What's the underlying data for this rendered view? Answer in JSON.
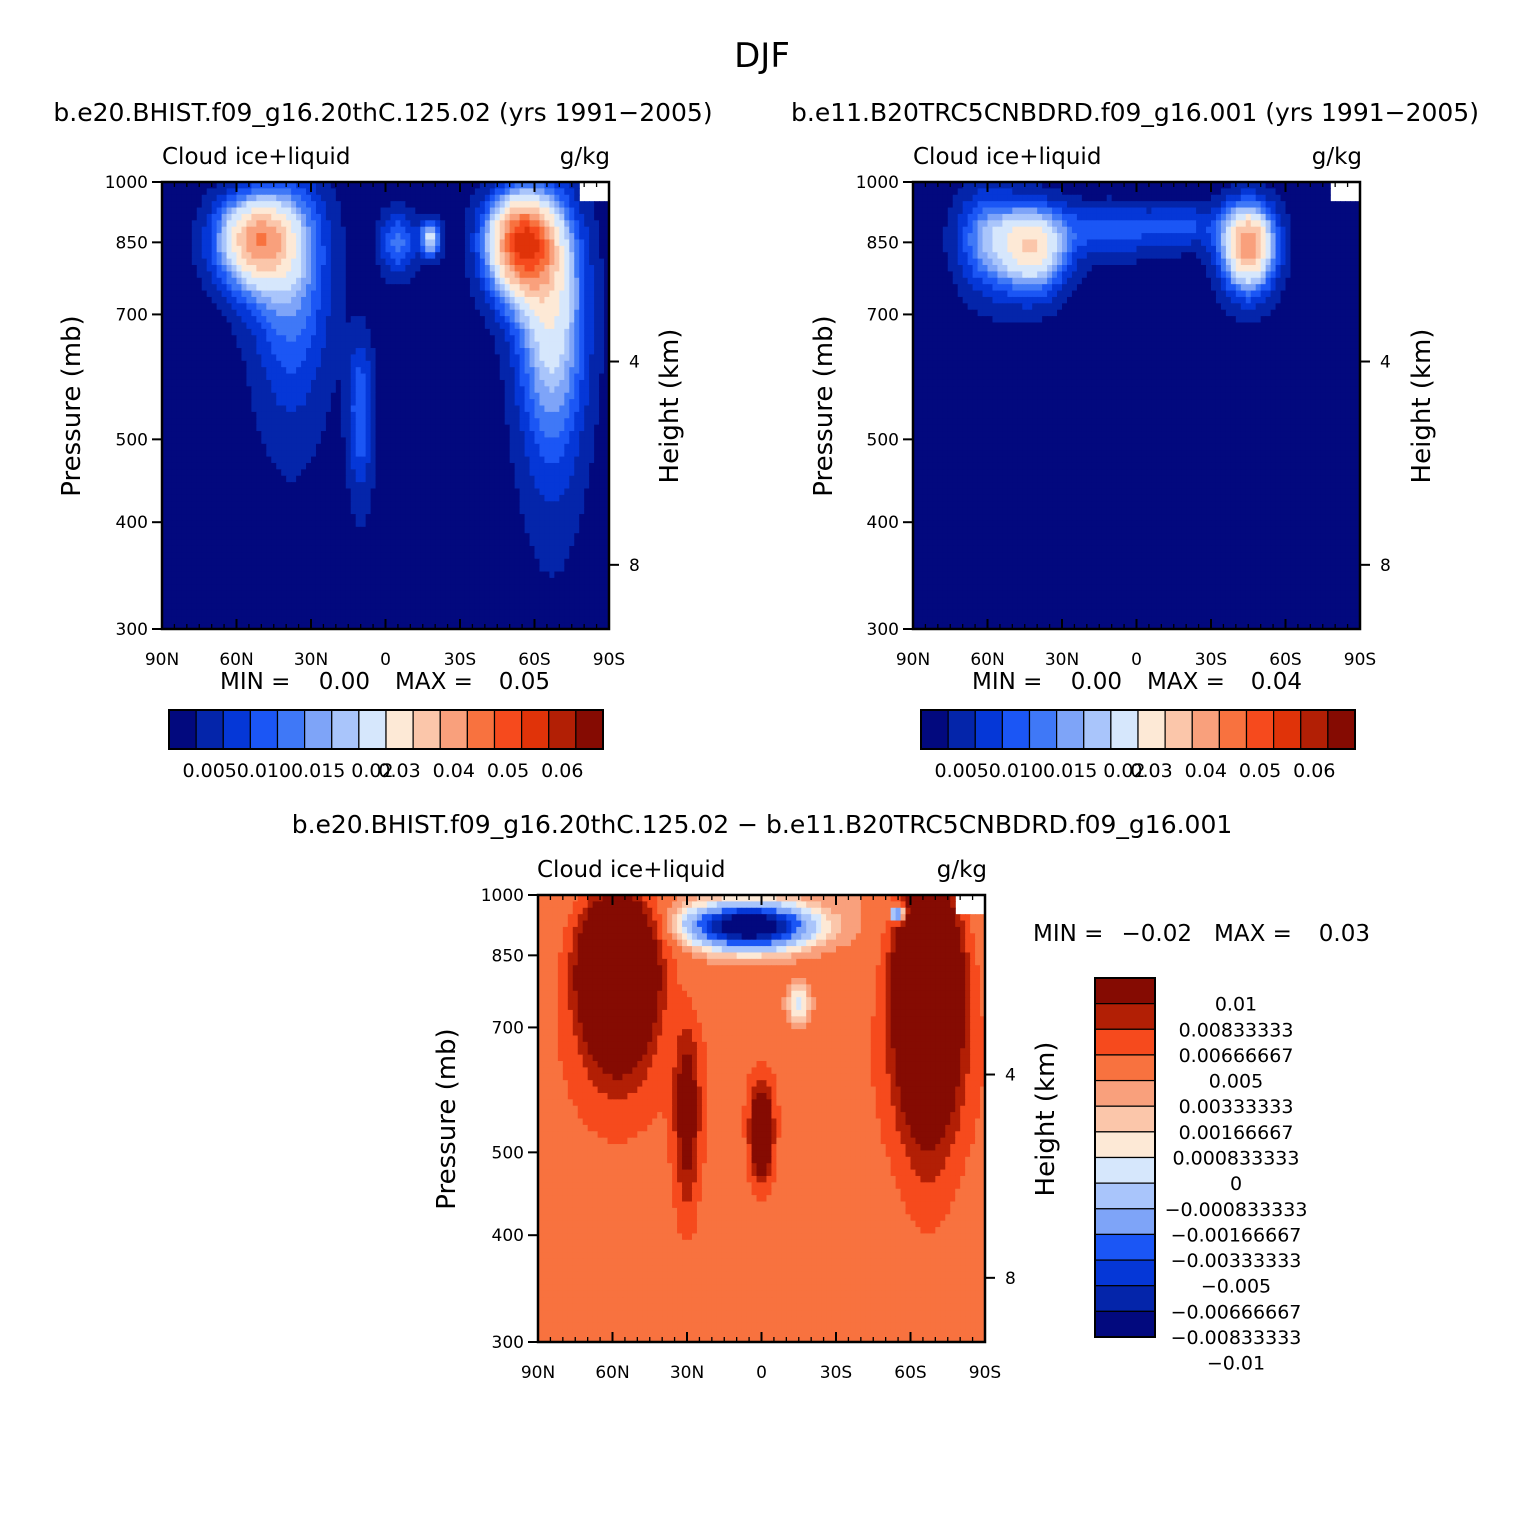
{
  "figure": {
    "title": "DJF"
  },
  "colors": {
    "seq": [
      "#02097e",
      "#0425aa",
      "#0537d7",
      "#1b56f5",
      "#3f78f7",
      "#7ea4f8",
      "#a9c5fb",
      "#d6e7fc",
      "#fde9d6",
      "#fbc6aa",
      "#f9a07c",
      "#f8723f",
      "#f64a1d",
      "#e03309",
      "#b21f05",
      "#850b02"
    ],
    "div": [
      "#02097e",
      "#0425aa",
      "#0537d7",
      "#1b56f5",
      "#7ea4f8",
      "#a9c5fb",
      "#d6e7fc",
      "#fde9d6",
      "#fbc6aa",
      "#f9a07c",
      "#f8723f",
      "#f64a1d",
      "#b21f05",
      "#850b02"
    ]
  },
  "chart_data": [
    {
      "type": "contour",
      "title": "b.e20.BHIST.f09_g16.20thC.125.02 (yrs 1991−2005)",
      "left_label": "Cloud ice+liquid",
      "right_label": "g/kg",
      "ylabel": "Pressure (mb)",
      "ylabel_right": "Height (km)",
      "x_ticks": [
        "90N",
        "60N",
        "30N",
        "0",
        "30S",
        "60S",
        "90S"
      ],
      "xlim": [
        90,
        -90
      ],
      "y_ticks": [
        "300",
        "400",
        "500",
        "700",
        "850",
        "1000"
      ],
      "ylim": [
        1000,
        300
      ],
      "y_right_ticks": [
        "8",
        "4"
      ],
      "min_label": "MIN =",
      "min_value": "0.00",
      "max_label": "MAX =",
      "max_value": "0.05",
      "colorbar_labels": [
        "0.005",
        "0.010",
        "0.015",
        "0.02",
        "0.03",
        "0.04",
        "0.05",
        "0.06"
      ],
      "blobs": [
        {
          "lat": 52,
          "p": 855,
          "sx": 15,
          "sy": 100,
          "amp": 0.032
        },
        {
          "lat": 38,
          "p": 780,
          "sx": 15,
          "sy": 230,
          "amp": 0.012
        },
        {
          "lat": 10,
          "p": 540,
          "sx": 5,
          "sy": 110,
          "amp": 0.009
        },
        {
          "lat": -18,
          "p": 860,
          "sx": 4,
          "sy": 40,
          "amp": 0.018
        },
        {
          "lat": -55,
          "p": 850,
          "sx": 13,
          "sy": 110,
          "amp": 0.045
        },
        {
          "lat": -67,
          "p": 700,
          "sx": 13,
          "sy": 220,
          "amp": 0.02
        },
        {
          "lat": -5,
          "p": 850,
          "sx": 7,
          "sy": 70,
          "amp": 0.01
        }
      ]
    },
    {
      "type": "contour",
      "title": "b.e11.B20TRC5CNBDRD.f09_g16.001 (yrs 1991−2005)",
      "left_label": "Cloud ice+liquid",
      "right_label": "g/kg",
      "ylabel": "Pressure (mb)",
      "ylabel_right": "Height (km)",
      "x_ticks": [
        "90N",
        "60N",
        "30N",
        "0",
        "30S",
        "60S",
        "90S"
      ],
      "xlim": [
        90,
        -90
      ],
      "y_ticks": [
        "300",
        "400",
        "500",
        "700",
        "850",
        "1000"
      ],
      "ylim": [
        1000,
        300
      ],
      "y_right_ticks": [
        "8",
        "4"
      ],
      "min_label": "MIN =",
      "min_value": "0.00",
      "max_label": "MAX =",
      "max_value": "0.04",
      "colorbar_labels": [
        "0.005",
        "0.010",
        "0.015",
        "0.02",
        "0.03",
        "0.04",
        "0.05",
        "0.06"
      ],
      "blobs": [
        {
          "lat": 42,
          "p": 840,
          "sx": 13,
          "sy": 90,
          "amp": 0.026
        },
        {
          "lat": -45,
          "p": 845,
          "sx": 10,
          "sy": 90,
          "amp": 0.036
        },
        {
          "lat": 10,
          "p": 880,
          "sx": 22,
          "sy": 60,
          "amp": 0.008
        },
        {
          "lat": -20,
          "p": 890,
          "sx": 14,
          "sy": 50,
          "amp": 0.006
        },
        {
          "lat": 60,
          "p": 860,
          "sx": 12,
          "sy": 110,
          "amp": 0.012
        }
      ]
    },
    {
      "type": "contour",
      "title": "b.e20.BHIST.f09_g16.20thC.125.02 − b.e11.B20TRC5CNBDRD.f09_g16.001",
      "left_label": "Cloud ice+liquid",
      "right_label": "g/kg",
      "ylabel": "Pressure (mb)",
      "ylabel_right": "Height (km)",
      "x_ticks": [
        "90N",
        "60N",
        "30N",
        "0",
        "30S",
        "60S",
        "90S"
      ],
      "xlim": [
        90,
        -90
      ],
      "y_ticks": [
        "300",
        "400",
        "500",
        "700",
        "850",
        "1000"
      ],
      "ylim": [
        1000,
        300
      ],
      "y_right_ticks": [
        "8",
        "4"
      ],
      "min_label": "MIN =",
      "min_value": "−0.02",
      "max_label": "MAX =",
      "max_value": "0.03",
      "colorbar_labels": [
        "0.01",
        "0.00833333",
        "0.00666667",
        "0.005",
        "0.00333333",
        "0.00166667",
        "0.000833333",
        "0",
        "−0.000833333",
        "−0.00166667",
        "−0.00333333",
        "−0.005",
        "−0.00666667",
        "−0.00833333",
        "−0.01"
      ],
      "blobs": [
        {
          "lat": 58,
          "p": 820,
          "sx": 14,
          "sy": 160,
          "amp": 0.02
        },
        {
          "lat": -67,
          "p": 780,
          "sx": 12,
          "sy": 220,
          "amp": 0.02
        },
        {
          "lat": 0,
          "p": 530,
          "sx": 4,
          "sy": 60,
          "amp": 0.011
        },
        {
          "lat": 30,
          "p": 560,
          "sx": 5,
          "sy": 130,
          "amp": 0.006
        },
        {
          "lat": 5,
          "p": 920,
          "sx": 22,
          "sy": 50,
          "amp": -0.016
        },
        {
          "lat": -15,
          "p": 745,
          "sx": 5,
          "sy": 40,
          "amp": -0.004
        },
        {
          "lat": -55,
          "p": 950,
          "sx": 3,
          "sy": 20,
          "amp": -0.012
        }
      ]
    }
  ]
}
